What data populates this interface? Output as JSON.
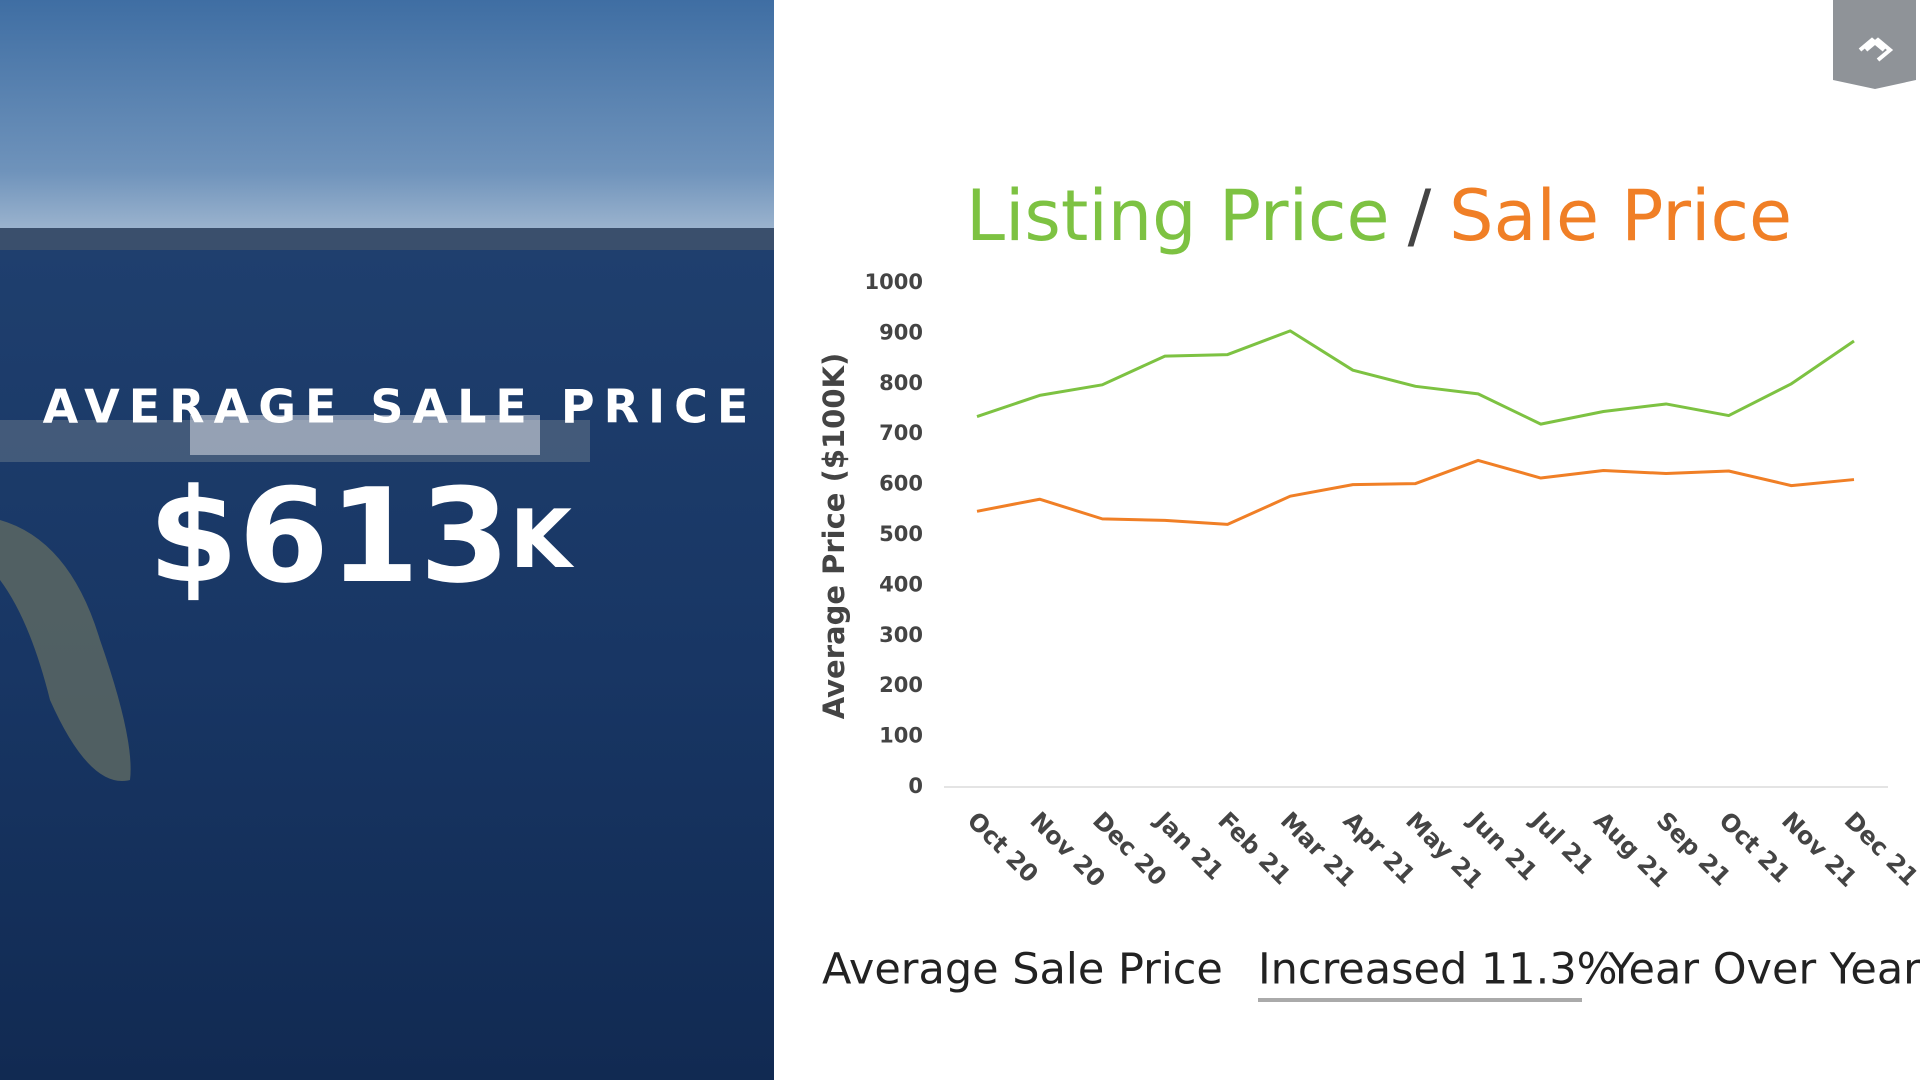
{
  "panel": {
    "heading": "AVERAGE SALE PRICE",
    "value_main": "$613",
    "value_unit": "K"
  },
  "chart_data": {
    "type": "line",
    "title_separator": "/",
    "y_label": "Average Price ($100K)",
    "categories": [
      "Oct 20",
      "Nov 20",
      "Dec 20",
      "Jan 21",
      "Feb 21",
      "Mar 21",
      "Apr 21",
      "May 21",
      "Jun 21",
      "Jul 21",
      "Aug 21",
      "Sep 21",
      "Oct 21",
      "Nov 21",
      "Dec 21"
    ],
    "series": [
      {
        "name": "Listing Price",
        "color": "#7dc242",
        "values": [
          735,
          777,
          798,
          855,
          858,
          905,
          827,
          795,
          780,
          720,
          745,
          760,
          737,
          800,
          885
        ]
      },
      {
        "name": "Sale Price",
        "color": "#f07f26",
        "values": [
          547,
          571,
          532,
          529,
          521,
          577,
          600,
          602,
          648,
          613,
          628,
          622,
          627,
          598,
          610
        ]
      }
    ],
    "ylim": [
      0,
      1000
    ],
    "yticks": [
      0,
      100,
      200,
      300,
      400,
      500,
      600,
      700,
      800,
      900,
      1000
    ]
  },
  "footer": {
    "lead": "Average Sale Price",
    "highlight": "Increased 11.3%",
    "tail": "Year Over Year"
  }
}
